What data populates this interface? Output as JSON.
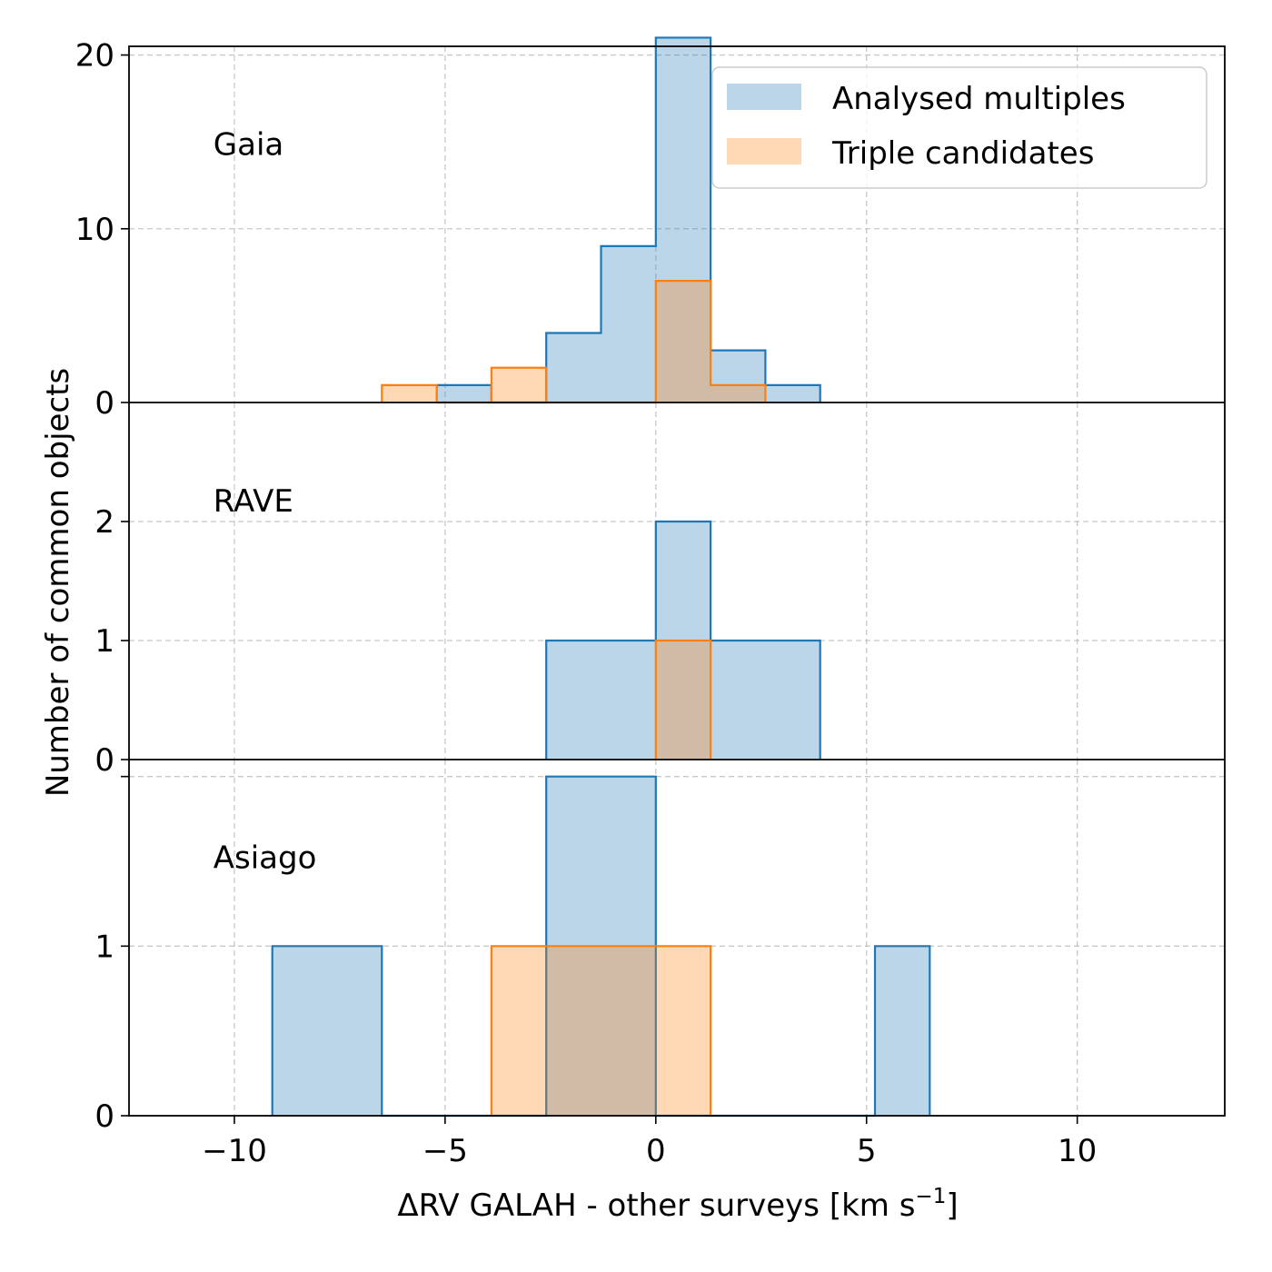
{
  "colors": {
    "multiples_fill": "#1f77b4",
    "multiples_fill_opacity": 0.3,
    "multiples_edge": "#1f77b4",
    "triples_fill": "#ff7f0e",
    "triples_fill_opacity": 0.3,
    "triples_edge": "#ff7f0e",
    "grid": "#b0b0b0"
  },
  "chart_data": {
    "type": "bar",
    "subtype": "step-histogram",
    "xlabel": "ΔRV GALAH - other surveys [km s",
    "xlabel_sup": "−1",
    "xlabel_tail": "]",
    "ylabel": "Number of common objects",
    "xlim": [
      -12.5,
      13.5
    ],
    "x_ticks": [
      -10,
      -5,
      0,
      5,
      10
    ],
    "x_tick_labels": [
      "−10",
      "−5",
      "0",
      "5",
      "10"
    ],
    "grid": true,
    "legend": {
      "placement": "top-right",
      "entries": [
        "Analysed multiples",
        "Triple candidates"
      ]
    },
    "bin_edges": [
      -9.1,
      -7.8,
      -6.5,
      -5.2,
      -3.9,
      -2.6,
      -1.3,
      0.0,
      1.3,
      2.6,
      3.9,
      5.2,
      6.5
    ],
    "panels": [
      {
        "label": "Gaia",
        "ylim": [
          0,
          20.5
        ],
        "y_ticks": [
          0,
          10,
          20
        ],
        "y_tick_labels": [
          "0",
          "10",
          "20"
        ],
        "series": [
          {
            "name": "Analysed multiples",
            "values": [
              0,
              0,
              0,
              1,
              0,
              4,
              9,
              21,
              3,
              1,
              0,
              0
            ]
          },
          {
            "name": "Triple candidates",
            "values": [
              0,
              0,
              1,
              0,
              2,
              0,
              0,
              7,
              1,
              0,
              0,
              0
            ]
          }
        ]
      },
      {
        "label": "RAVE",
        "ylim": [
          0,
          3
        ],
        "y_ticks": [
          0,
          1,
          2
        ],
        "y_tick_labels": [
          "0",
          "1",
          "2"
        ],
        "series": [
          {
            "name": "Analysed multiples",
            "values": [
              0,
              0,
              0,
              0,
              0,
              1,
              1,
              2,
              1,
              1,
              0,
              0
            ]
          },
          {
            "name": "Triple candidates",
            "values": [
              0,
              0,
              0,
              0,
              0,
              0,
              0,
              1,
              0,
              0,
              0,
              0
            ]
          }
        ]
      },
      {
        "label": "Asiago",
        "ylim": [
          0,
          2.1
        ],
        "y_ticks": [
          0,
          1,
          2
        ],
        "y_tick_labels": [
          "0",
          "1",
          ""
        ],
        "series": [
          {
            "name": "Analysed multiples",
            "values": [
              1,
              1,
              0,
              0,
              0,
              2,
              2,
              0,
              0,
              0,
              0,
              1
            ]
          },
          {
            "name": "Triple candidates",
            "values": [
              0,
              0,
              0,
              0,
              1,
              1,
              1,
              1,
              0,
              0,
              0,
              0
            ]
          }
        ]
      }
    ]
  }
}
